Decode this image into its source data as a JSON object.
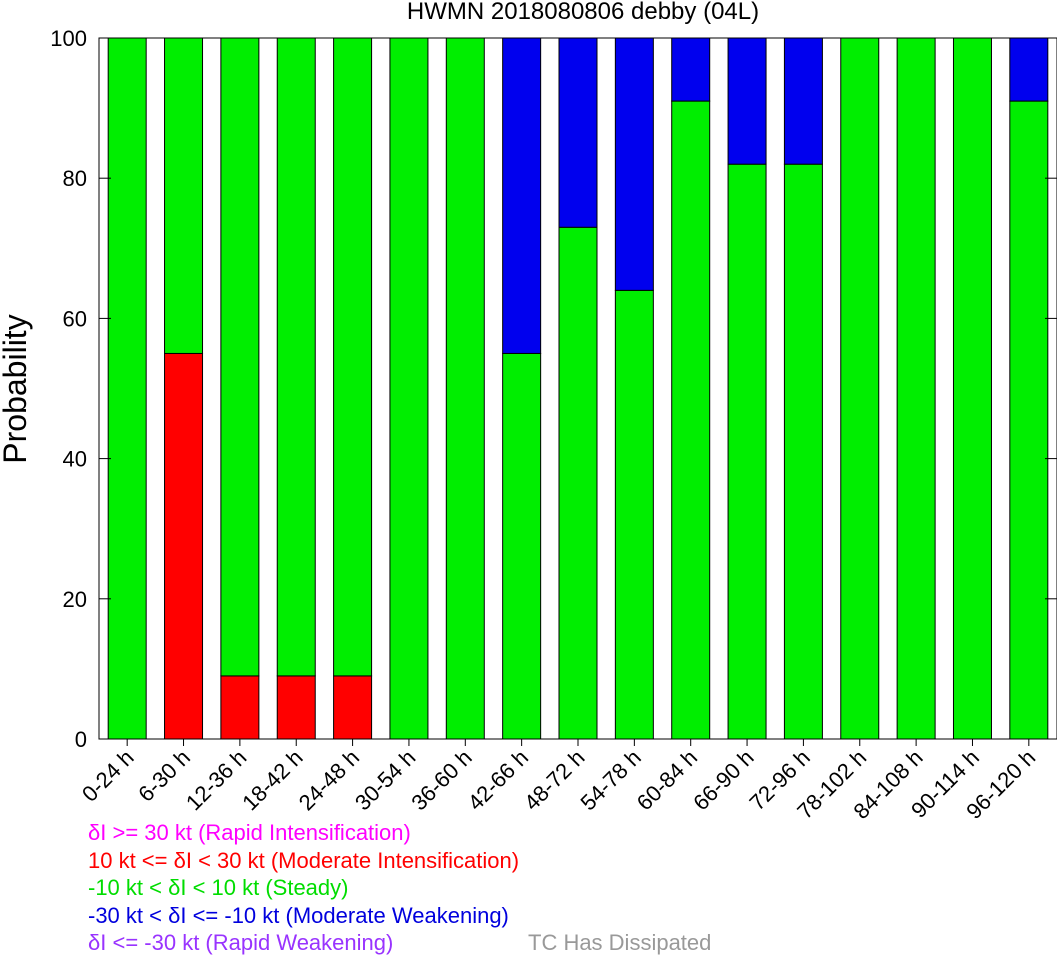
{
  "chart_data": {
    "type": "bar",
    "stacked": true,
    "title": "HWMN 2018080806 debby (04L)",
    "ylabel": "Probability",
    "ylim": [
      0,
      100
    ],
    "yticks": [
      0,
      20,
      40,
      60,
      80,
      100
    ],
    "categories": [
      "0-24 h",
      "6-30 h",
      "12-36 h",
      "18-42 h",
      "24-48 h",
      "30-54 h",
      "36-60 h",
      "42-66 h",
      "48-72 h",
      "54-78 h",
      "60-84 h",
      "66-90 h",
      "72-96 h",
      "78-102 h",
      "84-108 h",
      "90-114 h",
      "96-120 h"
    ],
    "series": [
      {
        "key": "rapid_intensification",
        "color": "#ff00ff",
        "values": [
          0,
          0,
          0,
          0,
          0,
          0,
          0,
          0,
          0,
          0,
          0,
          0,
          0,
          0,
          0,
          0,
          0
        ]
      },
      {
        "key": "moderate_intensification",
        "color": "#ff0000",
        "values": [
          0,
          55,
          9,
          9,
          9,
          0,
          0,
          0,
          0,
          0,
          0,
          0,
          0,
          0,
          0,
          0,
          0
        ]
      },
      {
        "key": "steady",
        "color": "#00ee00",
        "values": [
          100,
          45,
          91,
          91,
          91,
          100,
          100,
          55,
          73,
          64,
          91,
          82,
          82,
          100,
          100,
          100,
          91
        ]
      },
      {
        "key": "moderate_weakening",
        "color": "#0000ee",
        "values": [
          0,
          0,
          0,
          0,
          0,
          0,
          0,
          45,
          27,
          36,
          9,
          18,
          18,
          0,
          0,
          0,
          9
        ]
      },
      {
        "key": "rapid_weakening",
        "color": "#9933ff",
        "values": [
          0,
          0,
          0,
          0,
          0,
          0,
          0,
          0,
          0,
          0,
          0,
          0,
          0,
          0,
          0,
          0,
          0
        ]
      }
    ],
    "legend": [
      {
        "text": "δI >= 30 kt (Rapid Intensification)",
        "color": "#ff00ff"
      },
      {
        "text": "10 kt <= δI < 30 kt (Moderate Intensification)",
        "color": "#ff0000"
      },
      {
        "text": "-10 kt < δI < 10 kt (Steady)",
        "color": "#00dd00"
      },
      {
        "text": "-30 kt < δI <= -10 kt (Moderate Weakening)",
        "color": "#0000dd"
      },
      {
        "text": "δI <= -30 kt (Rapid Weakening)",
        "color": "#9933ff"
      }
    ],
    "note": {
      "text": "TC Has Dissipated",
      "color": "#999999"
    }
  }
}
